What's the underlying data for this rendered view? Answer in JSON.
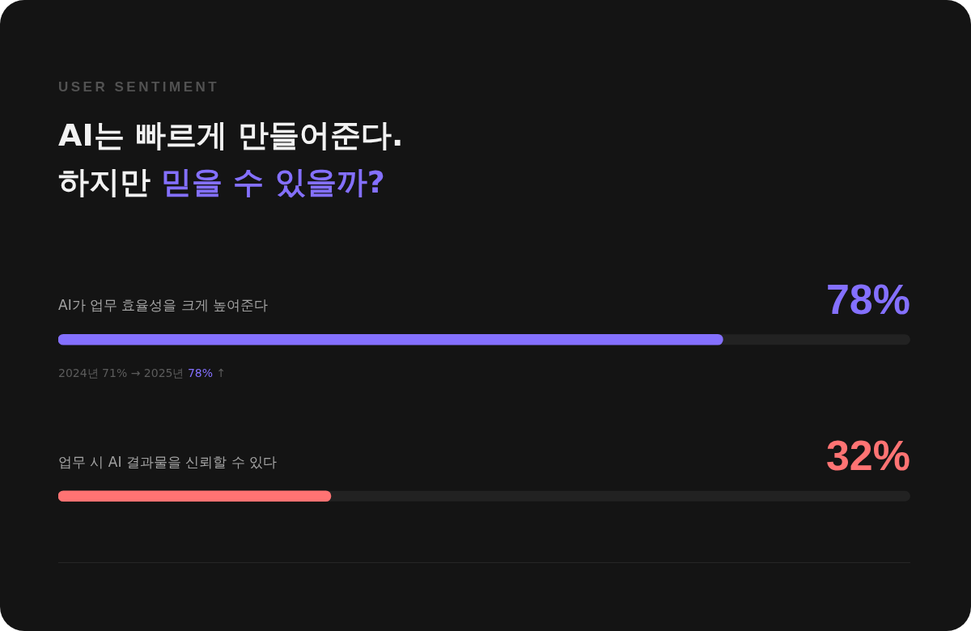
{
  "chart_data": {
    "type": "bar",
    "orientation": "horizontal",
    "subtitle": "USER SENTIMENT",
    "title": "AI는 빠르게 만들어준다.\n하지만 믿을 수 있을까?",
    "categories": [
      "AI가 업무 효율성을 크게 높여준다",
      "업무 시 AI 결과물을 신뢰할 수 있다"
    ],
    "values": [
      78,
      32
    ],
    "colors": [
      "#8470ff",
      "#ff7373"
    ],
    "value_labels": [
      "78%",
      "32%"
    ],
    "xlim": [
      0,
      100
    ],
    "tick_labels": "y",
    "annotations": [
      "2024년 71% → 2025년 78% ↑"
    ]
  }
}
